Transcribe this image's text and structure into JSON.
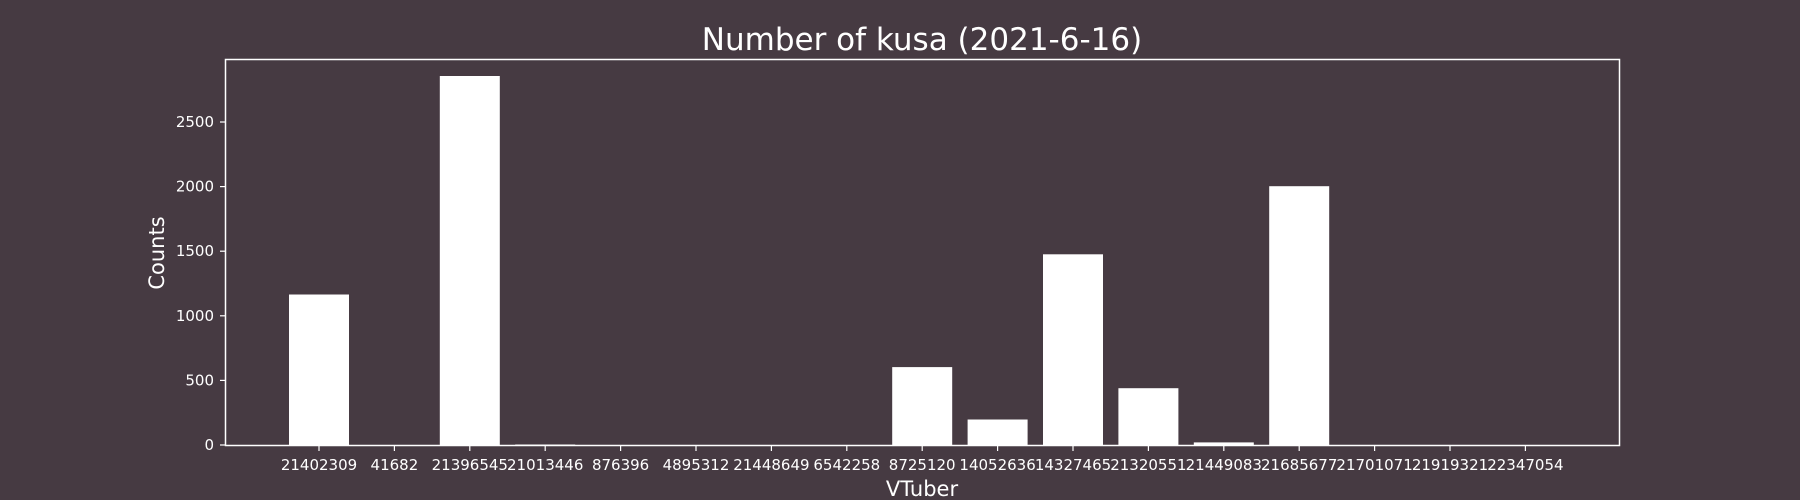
{
  "chart_data": {
    "type": "bar",
    "title": "Number of kusa (2021-6-16)",
    "xlabel": "VTuber",
    "ylabel": "Counts",
    "categories": [
      "21402309",
      "41682",
      "21396545",
      "21013446",
      "876396",
      "4895312",
      "21448649",
      "6542258",
      "8725120",
      "14052636",
      "14327465",
      "21320551",
      "21449083",
      "21685677",
      "21701071",
      "21919321",
      "22347054"
    ],
    "values": [
      1165,
      0,
      2856,
      4,
      0,
      0,
      0,
      0,
      603,
      197,
      1476,
      440,
      20,
      2003,
      0,
      0,
      0
    ],
    "ylim": [
      0,
      3000
    ],
    "yticks": [
      0,
      500,
      1000,
      1500,
      2000,
      2500
    ],
    "grid": false,
    "legend": "none",
    "colors": {
      "background": "#463a42",
      "bar": "#ffffff",
      "axes": "#ffffff",
      "text": "#ffffff"
    }
  }
}
